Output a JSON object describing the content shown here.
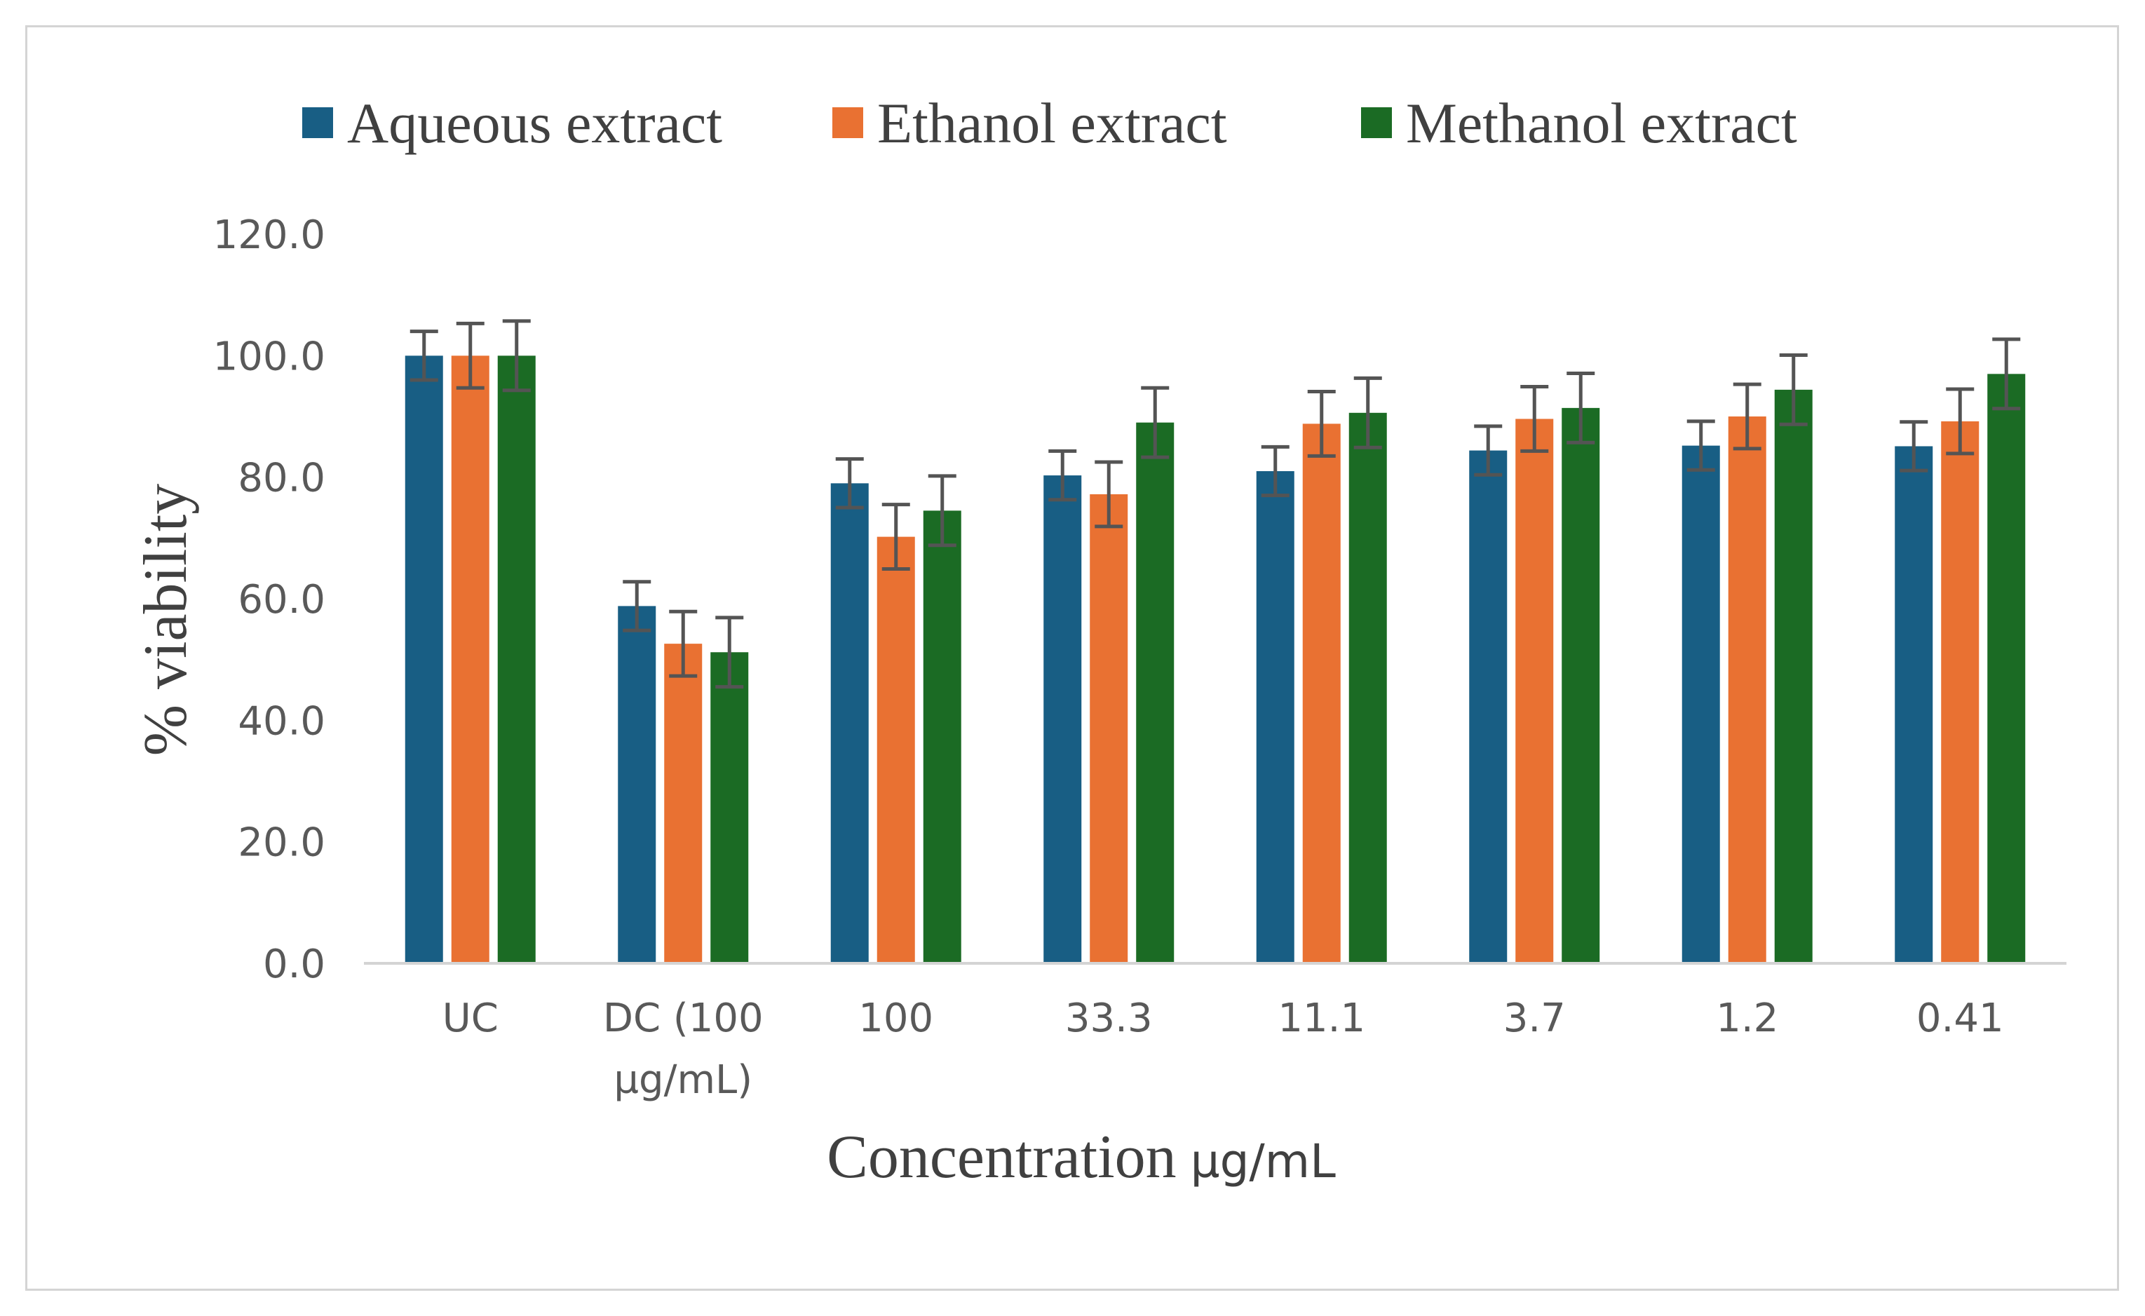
{
  "chart_data": {
    "type": "bar",
    "title": "",
    "xlabel": "Concentration",
    "xlabel_unit": "µg/mL",
    "ylabel": "% viability",
    "ylim": [
      0,
      120
    ],
    "yticks": [
      "0.0",
      "20.0",
      "40.0",
      "60.0",
      "80.0",
      "100.0",
      "120.0"
    ],
    "gridlines": false,
    "legend_position": "top",
    "categories": [
      [
        "UC"
      ],
      [
        "DC (100",
        "µg/mL)"
      ],
      [
        "100"
      ],
      [
        "33.3"
      ],
      [
        "11.1"
      ],
      [
        "3.7"
      ],
      [
        "1.2"
      ],
      [
        "0.41"
      ]
    ],
    "series": [
      {
        "name": "Aqueous extract",
        "color": "#185e84",
        "values": [
          100.0,
          58.8,
          79.0,
          80.3,
          81.0,
          84.4,
          85.2,
          85.1
        ],
        "errors": [
          4.0,
          4.0,
          4.0,
          4.0,
          4.0,
          4.0,
          4.0,
          4.0
        ]
      },
      {
        "name": "Ethanol extract",
        "color": "#e97132",
        "values": [
          100.0,
          52.6,
          70.2,
          77.2,
          88.8,
          89.6,
          90.0,
          89.2
        ],
        "errors": [
          5.3,
          5.3,
          5.3,
          5.3,
          5.3,
          5.3,
          5.3,
          5.3
        ]
      },
      {
        "name": "Methanol extract",
        "color": "#1b6b24",
        "values": [
          100.0,
          51.2,
          74.5,
          89.0,
          90.6,
          91.4,
          94.4,
          97.0
        ],
        "errors": [
          5.7,
          5.7,
          5.7,
          5.7,
          5.7,
          5.7,
          5.7,
          5.7
        ]
      }
    ],
    "error_bar_color": "#545454",
    "axis_color": "#d4d4d4"
  }
}
